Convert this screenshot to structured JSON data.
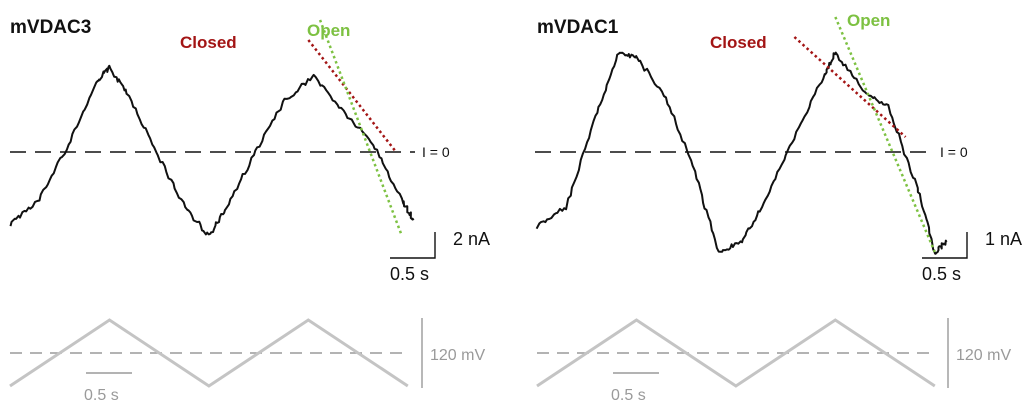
{
  "chart_data": [
    {
      "type": "line",
      "title": "mVDAC3",
      "zero_line_label": "I = 0",
      "legend": {
        "closed": "Closed",
        "open": "Open"
      },
      "colors": {
        "trace": "#111111",
        "closed": "#a31515",
        "open": "#7dc142",
        "voltage": "#bdbdbd"
      },
      "current_scale": "2 nA",
      "time_scale": "0.5 s",
      "voltage_scale": "120 mV",
      "voltage_time_scale": "0.5 s",
      "current_trace": [
        [
          0.0,
          -0.9
        ],
        [
          0.25,
          -0.6
        ],
        [
          0.5,
          0.1
        ],
        [
          0.75,
          0.9
        ],
        [
          0.85,
          1.05
        ],
        [
          1.0,
          0.75
        ],
        [
          1.25,
          0.0
        ],
        [
          1.5,
          -0.7
        ],
        [
          1.7,
          -1.05
        ],
        [
          1.85,
          -0.7
        ],
        [
          2.1,
          0.0
        ],
        [
          2.35,
          0.65
        ],
        [
          2.6,
          0.95
        ],
        [
          2.85,
          0.5
        ],
        [
          3.1,
          0.1
        ],
        [
          3.35,
          -0.6
        ],
        [
          3.45,
          -0.85
        ]
      ],
      "closed_fit": [
        [
          2.55,
          1.4
        ],
        [
          3.3,
          0.0
        ]
      ],
      "open_fit": [
        [
          2.65,
          1.65
        ],
        [
          3.35,
          -1.05
        ]
      ],
      "voltage_trace": [
        [
          0.0,
          -0.5
        ],
        [
          0.85,
          0.5
        ],
        [
          1.7,
          -0.5
        ],
        [
          2.55,
          0.5
        ],
        [
          3.4,
          -0.5
        ]
      ]
    },
    {
      "type": "line",
      "title": "mVDAC1",
      "zero_line_label": "I = 0",
      "legend": {
        "closed": "Closed",
        "open": "Open"
      },
      "colors": {
        "trace": "#111111",
        "closed": "#a31515",
        "open": "#7dc142",
        "voltage": "#bdbdbd"
      },
      "current_scale": "1 nA",
      "time_scale": "0.5 s",
      "voltage_scale": "120 mV",
      "voltage_time_scale": "0.5 s",
      "current_trace": [
        [
          0.0,
          -0.75
        ],
        [
          0.25,
          -0.55
        ],
        [
          0.5,
          0.35
        ],
        [
          0.7,
          1.0
        ],
        [
          0.85,
          0.95
        ],
        [
          1.1,
          0.55
        ],
        [
          1.35,
          -0.2
        ],
        [
          1.55,
          -1.0
        ],
        [
          1.75,
          -0.9
        ],
        [
          1.95,
          -0.5
        ],
        [
          2.2,
          0.15
        ],
        [
          2.45,
          0.75
        ],
        [
          2.55,
          1.0
        ],
        [
          2.8,
          0.6
        ],
        [
          3.0,
          0.45
        ],
        [
          3.25,
          -0.35
        ],
        [
          3.4,
          -1.0
        ],
        [
          3.5,
          -0.9
        ]
      ],
      "closed_fit": [
        [
          2.2,
          1.15
        ],
        [
          3.15,
          0.15
        ]
      ],
      "open_fit": [
        [
          2.55,
          1.35
        ],
        [
          3.4,
          -1.0
        ]
      ],
      "voltage_trace": [
        [
          0.0,
          -0.5
        ],
        [
          0.85,
          0.5
        ],
        [
          1.7,
          -0.5
        ],
        [
          2.55,
          0.5
        ],
        [
          3.4,
          -0.5
        ]
      ]
    }
  ]
}
